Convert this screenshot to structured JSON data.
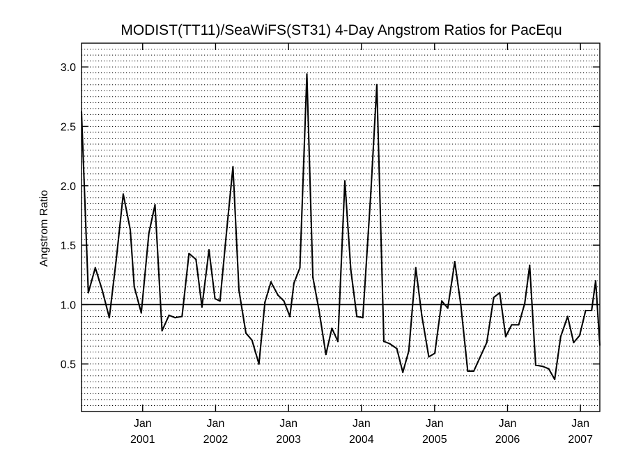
{
  "chart_data": {
    "type": "line",
    "title": "MODIST(TT11)/SeaWiFS(ST31) 4-Day Angstrom Ratios for PacEqu",
    "xlabel": "",
    "ylabel": "Angstrom Ratio",
    "ylim": [
      0.1,
      3.2
    ],
    "xlim": [
      "2000-03-01",
      "2007-04-08"
    ],
    "y_ticks": [
      "0.5",
      "1.0",
      "1.5",
      "2.0",
      "2.5",
      "3.0"
    ],
    "x_ticks": [
      {
        "date": "2001-01-01",
        "month": "Jan",
        "year": "2001"
      },
      {
        "date": "2002-01-01",
        "month": "Jan",
        "year": "2002"
      },
      {
        "date": "2003-01-01",
        "month": "Jan",
        "year": "2003"
      },
      {
        "date": "2004-01-01",
        "month": "Jan",
        "year": "2004"
      },
      {
        "date": "2005-01-01",
        "month": "Jan",
        "year": "2005"
      },
      {
        "date": "2006-01-01",
        "month": "Jan",
        "year": "2006"
      },
      {
        "date": "2007-01-01",
        "month": "Jan",
        "year": "2007"
      }
    ],
    "reference_line": 1.0,
    "grid": "horizontal dotted",
    "series": [
      {
        "color": "#000000",
        "points": [
          [
            "2000-03-01",
            2.62
          ],
          [
            "2000-04-04",
            1.1
          ],
          [
            "2000-05-09",
            1.31
          ],
          [
            "2000-06-13",
            1.12
          ],
          [
            "2000-07-18",
            0.89
          ],
          [
            "2000-08-22",
            1.38
          ],
          [
            "2000-09-26",
            1.93
          ],
          [
            "2000-10-31",
            1.63
          ],
          [
            "2000-11-20",
            1.15
          ],
          [
            "2000-12-25",
            0.93
          ],
          [
            "2001-02-01",
            1.6
          ],
          [
            "2001-03-04",
            1.84
          ],
          [
            "2001-04-08",
            0.78
          ],
          [
            "2001-05-13",
            0.91
          ],
          [
            "2001-06-12",
            0.89
          ],
          [
            "2001-07-17",
            0.9
          ],
          [
            "2001-08-21",
            1.43
          ],
          [
            "2001-09-25",
            1.38
          ],
          [
            "2001-10-25",
            0.98
          ],
          [
            "2001-11-29",
            1.46
          ],
          [
            "2001-12-29",
            1.05
          ],
          [
            "2002-01-23",
            1.03
          ],
          [
            "2002-02-27",
            1.65
          ],
          [
            "2002-03-29",
            2.16
          ],
          [
            "2002-04-28",
            1.12
          ],
          [
            "2002-06-02",
            0.76
          ],
          [
            "2002-07-02",
            0.7
          ],
          [
            "2002-08-06",
            0.5
          ],
          [
            "2002-09-05",
            1.02
          ],
          [
            "2002-10-05",
            1.19
          ],
          [
            "2002-11-09",
            1.08
          ],
          [
            "2002-12-09",
            1.03
          ],
          [
            "2003-01-08",
            0.9
          ],
          [
            "2003-01-28",
            1.18
          ],
          [
            "2003-02-27",
            1.31
          ],
          [
            "2003-04-03",
            2.94
          ],
          [
            "2003-05-03",
            1.23
          ],
          [
            "2003-06-02",
            0.96
          ],
          [
            "2003-07-07",
            0.58
          ],
          [
            "2003-08-06",
            0.8
          ],
          [
            "2003-09-05",
            0.69
          ],
          [
            "2003-10-10",
            2.04
          ],
          [
            "2003-11-09",
            1.29
          ],
          [
            "2003-12-09",
            0.9
          ],
          [
            "2004-01-08",
            0.89
          ],
          [
            "2004-02-17",
            1.94
          ],
          [
            "2004-03-18",
            2.85
          ],
          [
            "2004-04-22",
            0.69
          ],
          [
            "2004-05-22",
            0.67
          ],
          [
            "2004-06-26",
            0.63
          ],
          [
            "2004-07-26",
            0.43
          ],
          [
            "2004-08-25",
            0.61
          ],
          [
            "2004-09-29",
            1.31
          ],
          [
            "2004-10-29",
            0.91
          ],
          [
            "2004-12-03",
            0.56
          ],
          [
            "2005-01-02",
            0.59
          ],
          [
            "2005-02-06",
            1.03
          ],
          [
            "2005-03-08",
            0.97
          ],
          [
            "2005-04-12",
            1.36
          ],
          [
            "2005-05-12",
            1.0
          ],
          [
            "2005-06-16",
            0.44
          ],
          [
            "2005-07-16",
            0.44
          ],
          [
            "2005-08-20",
            0.57
          ],
          [
            "2005-09-19",
            0.68
          ],
          [
            "2005-10-24",
            1.06
          ],
          [
            "2005-11-23",
            1.1
          ],
          [
            "2005-12-23",
            0.73
          ],
          [
            "2006-01-22",
            0.83
          ],
          [
            "2006-02-26",
            0.83
          ],
          [
            "2006-03-28",
            1.01
          ],
          [
            "2006-04-22",
            1.33
          ],
          [
            "2006-05-22",
            0.49
          ],
          [
            "2006-06-26",
            0.48
          ],
          [
            "2006-07-26",
            0.46
          ],
          [
            "2006-08-25",
            0.37
          ],
          [
            "2006-09-24",
            0.73
          ],
          [
            "2006-10-29",
            0.9
          ],
          [
            "2006-11-28",
            0.68
          ],
          [
            "2006-12-28",
            0.74
          ],
          [
            "2007-01-27",
            0.95
          ],
          [
            "2007-02-26",
            0.95
          ],
          [
            "2007-03-18",
            1.2
          ],
          [
            "2007-04-08",
            0.66
          ]
        ]
      }
    ]
  }
}
